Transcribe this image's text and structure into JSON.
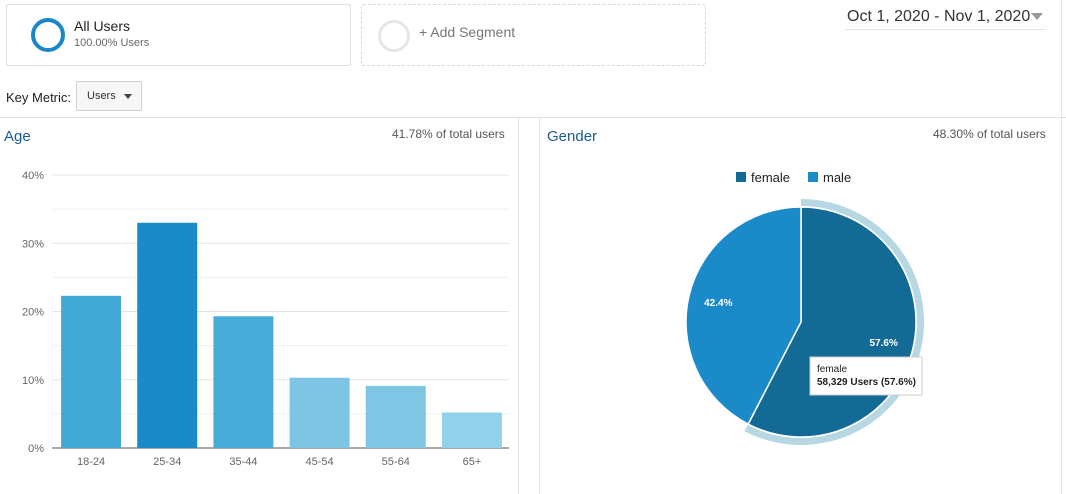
{
  "segments": {
    "active": {
      "name": "All Users",
      "share": "100.00% Users"
    },
    "add_label": "+ Add Segment"
  },
  "date_range": "Oct 1, 2020 - Nov 1, 2020",
  "key_metric": {
    "label": "Key Metric:",
    "value": "Users"
  },
  "age_panel": {
    "title": "Age",
    "share": "41.78% of total users"
  },
  "gender_panel": {
    "title": "Gender",
    "share": "48.30% of total users"
  },
  "tooltip": {
    "title": "female",
    "value": "58,329 Users (57.6%)"
  },
  "colors": {
    "age_bars": [
      "#42a9d6",
      "#1a8ac8",
      "#48acd8",
      "#7ec4e4",
      "#7fc6e5",
      "#93d1ea"
    ],
    "female": "#136b95",
    "male": "#1a8ac8",
    "highlight_ring": "#b7d7e3"
  },
  "chart_data": [
    {
      "type": "bar",
      "categories": [
        "18-24",
        "25-34",
        "35-44",
        "45-54",
        "55-64",
        "65+"
      ],
      "values": [
        22.3,
        33.0,
        19.3,
        10.3,
        9.1,
        5.2
      ],
      "ylim": [
        0,
        40
      ],
      "yticks": [
        "0%",
        "10%",
        "20%",
        "30%",
        "40%"
      ],
      "grid": true
    },
    {
      "type": "pie",
      "legend": [
        "female",
        "male"
      ],
      "legend_position": "top",
      "slices": [
        {
          "label": "female",
          "value": 57.6,
          "text": "57.6%"
        },
        {
          "label": "male",
          "value": 42.4,
          "text": "42.4%"
        }
      ]
    }
  ]
}
